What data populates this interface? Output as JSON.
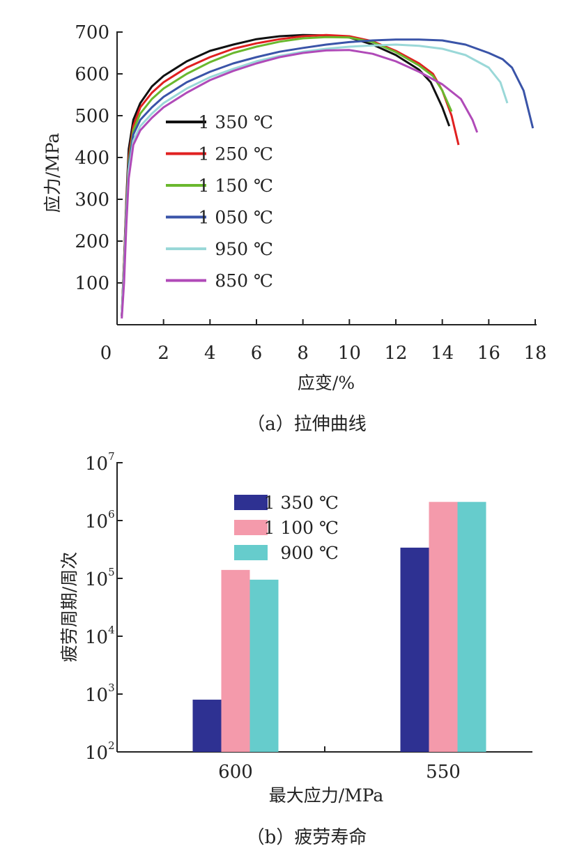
{
  "chart_data": [
    {
      "type": "line",
      "caption": "（a）拉伸曲线",
      "xlabel": "应变/%",
      "ylabel": "应力/MPa",
      "xlim": [
        0,
        18
      ],
      "ylim": [
        0,
        700
      ],
      "x_ticks": [
        "0",
        "2",
        "4",
        "6",
        "8",
        "10",
        "12",
        "14",
        "16",
        "18"
      ],
      "y_ticks": [
        "100",
        "200",
        "300",
        "400",
        "500",
        "600",
        "700"
      ],
      "legend_position": "center-left",
      "series": [
        {
          "name": "1 350 ℃",
          "color": "#111111",
          "points": [
            [
              0.2,
              20
            ],
            [
              0.3,
              150
            ],
            [
              0.4,
              300
            ],
            [
              0.5,
              420
            ],
            [
              0.7,
              490
            ],
            [
              1,
              530
            ],
            [
              1.5,
              570
            ],
            [
              2,
              595
            ],
            [
              3,
              630
            ],
            [
              4,
              655
            ],
            [
              5,
              670
            ],
            [
              6,
              683
            ],
            [
              7,
              690
            ],
            [
              8,
              693
            ],
            [
              9,
              692
            ],
            [
              10,
              687
            ],
            [
              11,
              670
            ],
            [
              12,
              645
            ],
            [
              13,
              610
            ],
            [
              13.5,
              580
            ],
            [
              14,
              520
            ],
            [
              14.3,
              475
            ]
          ]
        },
        {
          "name": "1 250 ℃",
          "color": "#e02020",
          "points": [
            [
              0.2,
              20
            ],
            [
              0.3,
              150
            ],
            [
              0.4,
              290
            ],
            [
              0.5,
              400
            ],
            [
              0.7,
              475
            ],
            [
              1,
              520
            ],
            [
              1.5,
              555
            ],
            [
              2,
              580
            ],
            [
              3,
              615
            ],
            [
              4,
              640
            ],
            [
              5,
              660
            ],
            [
              6,
              673
            ],
            [
              7,
              683
            ],
            [
              8,
              690
            ],
            [
              9,
              693
            ],
            [
              10,
              690
            ],
            [
              11,
              678
            ],
            [
              12,
              655
            ],
            [
              13,
              625
            ],
            [
              13.6,
              600
            ],
            [
              14,
              560
            ],
            [
              14.4,
              500
            ],
            [
              14.7,
              430
            ]
          ]
        },
        {
          "name": "1 150 ℃",
          "color": "#6ab82e",
          "points": [
            [
              0.2,
              20
            ],
            [
              0.3,
              140
            ],
            [
              0.4,
              280
            ],
            [
              0.5,
              390
            ],
            [
              0.7,
              465
            ],
            [
              1,
              505
            ],
            [
              1.5,
              540
            ],
            [
              2,
              565
            ],
            [
              3,
              600
            ],
            [
              4,
              628
            ],
            [
              5,
              650
            ],
            [
              6,
              665
            ],
            [
              7,
              677
            ],
            [
              8,
              685
            ],
            [
              9,
              688
            ],
            [
              10,
              687
            ],
            [
              11,
              676
            ],
            [
              12,
              652
            ],
            [
              13,
              620
            ],
            [
              13.6,
              595
            ],
            [
              14,
              560
            ],
            [
              14.4,
              510
            ]
          ]
        },
        {
          "name": "1 050 ℃",
          "color": "#3a54a8",
          "points": [
            [
              0.2,
              20
            ],
            [
              0.3,
              130
            ],
            [
              0.4,
              270
            ],
            [
              0.5,
              380
            ],
            [
              0.7,
              455
            ],
            [
              1,
              490
            ],
            [
              1.5,
              520
            ],
            [
              2,
              545
            ],
            [
              3,
              580
            ],
            [
              4,
              605
            ],
            [
              5,
              625
            ],
            [
              6,
              640
            ],
            [
              7,
              653
            ],
            [
              8,
              662
            ],
            [
              9,
              670
            ],
            [
              10,
              676
            ],
            [
              11,
              680
            ],
            [
              12,
              682
            ],
            [
              13,
              682
            ],
            [
              14,
              680
            ],
            [
              15,
              670
            ],
            [
              16,
              650
            ],
            [
              16.6,
              635
            ],
            [
              17,
              615
            ],
            [
              17.5,
              560
            ],
            [
              17.9,
              470
            ]
          ]
        },
        {
          "name": "950 ℃",
          "color": "#9ad8d8",
          "points": [
            [
              0.2,
              20
            ],
            [
              0.3,
              120
            ],
            [
              0.4,
              260
            ],
            [
              0.5,
              370
            ],
            [
              0.7,
              440
            ],
            [
              1,
              475
            ],
            [
              1.5,
              505
            ],
            [
              2,
              530
            ],
            [
              3,
              565
            ],
            [
              4,
              592
            ],
            [
              5,
              612
            ],
            [
              6,
              630
            ],
            [
              7,
              643
            ],
            [
              8,
              653
            ],
            [
              9,
              660
            ],
            [
              10,
              665
            ],
            [
              11,
              668
            ],
            [
              12,
              670
            ],
            [
              13,
              667
            ],
            [
              14,
              660
            ],
            [
              15,
              645
            ],
            [
              16,
              615
            ],
            [
              16.5,
              580
            ],
            [
              16.8,
              530
            ]
          ]
        },
        {
          "name": "850 ℃",
          "color": "#b04ab8",
          "points": [
            [
              0.2,
              15
            ],
            [
              0.3,
              100
            ],
            [
              0.4,
              240
            ],
            [
              0.5,
              350
            ],
            [
              0.7,
              430
            ],
            [
              1,
              465
            ],
            [
              1.5,
              495
            ],
            [
              2,
              520
            ],
            [
              3,
              555
            ],
            [
              4,
              585
            ],
            [
              5,
              607
            ],
            [
              6,
              625
            ],
            [
              7,
              640
            ],
            [
              8,
              650
            ],
            [
              9,
              656
            ],
            [
              10,
              657
            ],
            [
              11,
              648
            ],
            [
              12,
              630
            ],
            [
              13,
              605
            ],
            [
              14,
              575
            ],
            [
              14.8,
              540
            ],
            [
              15.3,
              490
            ],
            [
              15.5,
              460
            ]
          ]
        }
      ]
    },
    {
      "type": "bar",
      "caption": "（b）疲劳寿命",
      "xlabel": "最大应力/MPa",
      "ylabel": "疲劳周期/周次",
      "yscale": "log",
      "ylim": [
        100,
        10000000
      ],
      "y_ticks": [
        {
          "base": "10",
          "exp": "2"
        },
        {
          "base": "10",
          "exp": "3"
        },
        {
          "base": "10",
          "exp": "4"
        },
        {
          "base": "10",
          "exp": "5"
        },
        {
          "base": "10",
          "exp": "6"
        },
        {
          "base": "10",
          "exp": "7"
        }
      ],
      "categories": [
        "600",
        "550"
      ],
      "legend_position": "top-center",
      "series": [
        {
          "name": "1 350 ℃",
          "color": "#2e3192",
          "values": [
            800,
            340000
          ]
        },
        {
          "name": "1 100 ℃",
          "color": "#f49aab",
          "values": [
            140000,
            2100000
          ]
        },
        {
          "name": "900 ℃",
          "color": "#66cccc",
          "values": [
            95000,
            2100000
          ]
        }
      ]
    }
  ]
}
